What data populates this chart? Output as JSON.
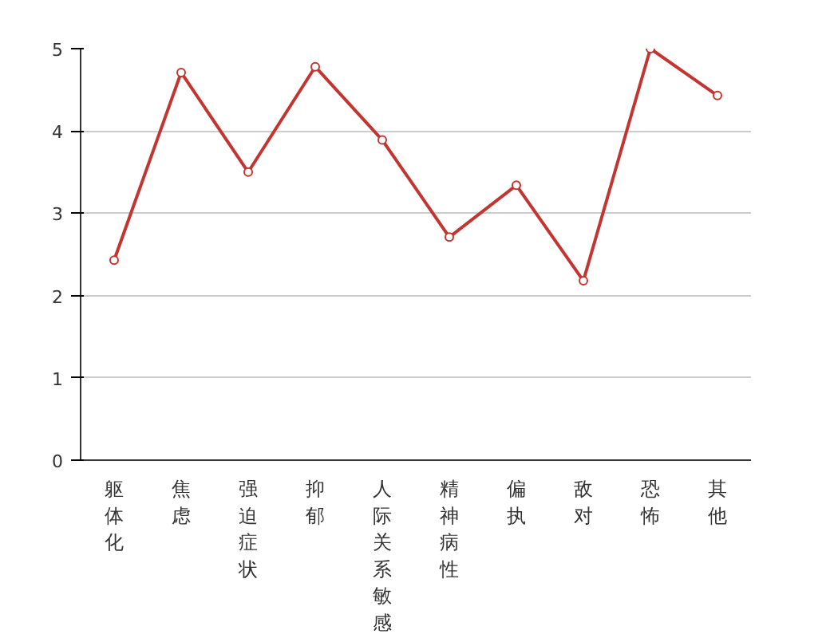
{
  "chart_data": {
    "type": "line",
    "categories": [
      "躯体化",
      "焦虑",
      "强迫症状",
      "抑郁",
      "人际关系敏感",
      "精神病性",
      "偏执",
      "敌对",
      "恐怖",
      "其他"
    ],
    "series": [
      {
        "color": "#c23531",
        "values": [
          2.43,
          4.71,
          3.5,
          4.78,
          3.89,
          2.71,
          3.34,
          2.18,
          5.0,
          4.43
        ]
      }
    ],
    "ylim": [
      0,
      5
    ],
    "yticks": [
      0,
      1,
      2,
      3,
      4,
      5
    ],
    "grid": "y",
    "marker": "circle",
    "line_style": "solid"
  }
}
